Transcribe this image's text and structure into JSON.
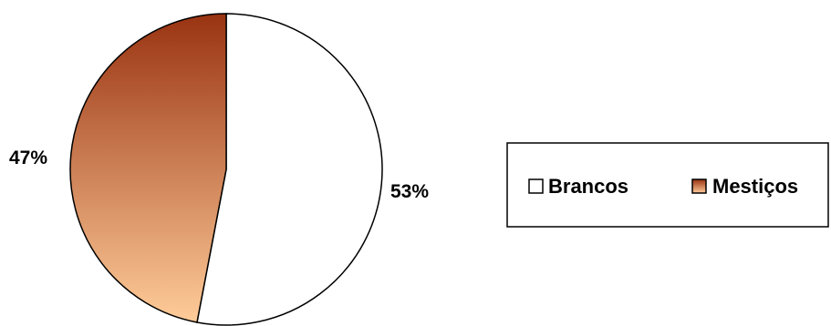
{
  "chart_data": {
    "type": "pie",
    "title": "",
    "labels": [
      "Brancos",
      "Mestiços"
    ],
    "values": [
      53,
      47
    ],
    "value_labels": [
      "53%",
      "47%"
    ],
    "colors": {
      "Brancos": "#ffffff",
      "Mestiços_gradient_top": "#993311",
      "Mestiços_gradient_bottom": "#ffcc99"
    },
    "start_angle": "12 o'clock",
    "direction": "clockwise",
    "legend": {
      "position": "right",
      "items": [
        "Brancos",
        "Mestiços"
      ]
    }
  }
}
